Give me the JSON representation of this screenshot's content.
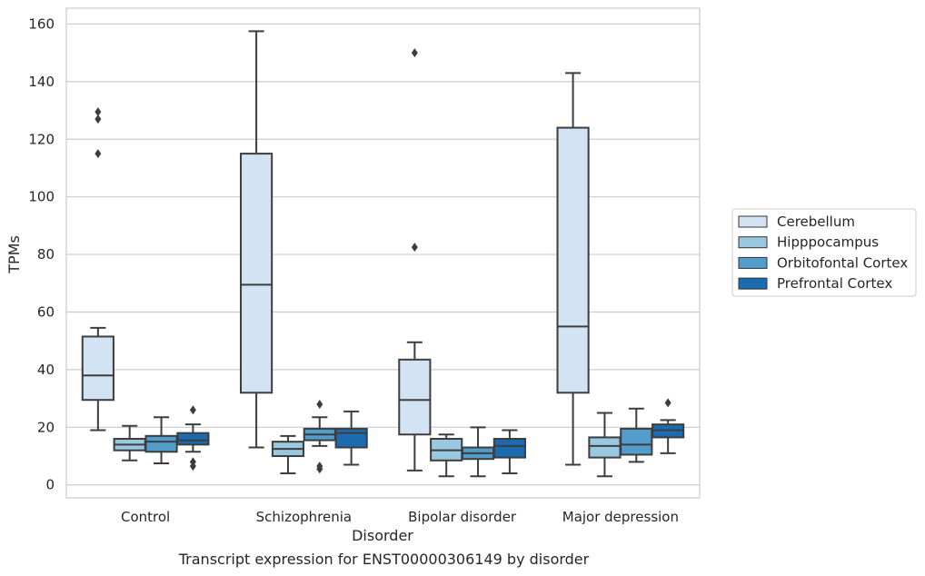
{
  "chart_data": {
    "type": "box",
    "xlabel": "Disorder",
    "ylabel": "TPMs",
    "caption": "Transcript expression for ENST00000306149 by disorder",
    "ylim": [
      -4.5,
      165.5
    ],
    "yticks": [
      0,
      20,
      40,
      60,
      80,
      100,
      120,
      140,
      160
    ],
    "grid": "horizontal",
    "legend_position": "right",
    "categories": [
      "Control",
      "Schizophrenia",
      "Bipolar disorder",
      "Major depression"
    ],
    "series": [
      {
        "name": "Cerebellum",
        "color": "#d2e3f3",
        "boxes": [
          {
            "whisker_low": 19,
            "q1": 29.5,
            "median": 38,
            "q3": 51.5,
            "whisker_high": 54.5,
            "outliers": [
              115,
              127,
              129.5
            ]
          },
          {
            "whisker_low": 13,
            "q1": 32,
            "median": 69.5,
            "q3": 115,
            "whisker_high": 157.5,
            "outliers": []
          },
          {
            "whisker_low": 5,
            "q1": 17.5,
            "median": 29.5,
            "q3": 43.5,
            "whisker_high": 49.5,
            "outliers": [
              82.5,
              150
            ]
          },
          {
            "whisker_low": 7,
            "q1": 32,
            "median": 55,
            "q3": 124,
            "whisker_high": 143,
            "outliers": []
          }
        ]
      },
      {
        "name": "Hipppocampus",
        "color": "#9ac8e0",
        "boxes": [
          {
            "whisker_low": 8.5,
            "q1": 12,
            "median": 14,
            "q3": 16,
            "whisker_high": 20.5,
            "outliers": []
          },
          {
            "whisker_low": 4,
            "q1": 10,
            "median": 12.5,
            "q3": 15,
            "whisker_high": 17,
            "outliers": []
          },
          {
            "whisker_low": 3,
            "q1": 8.5,
            "median": 12,
            "q3": 16,
            "whisker_high": 17.5,
            "outliers": []
          },
          {
            "whisker_low": 3,
            "q1": 9.5,
            "median": 13.5,
            "q3": 16.5,
            "whisker_high": 25,
            "outliers": []
          }
        ]
      },
      {
        "name": "Orbitofontal Cortex",
        "color": "#529dcc",
        "boxes": [
          {
            "whisker_low": 7.5,
            "q1": 11.5,
            "median": 15,
            "q3": 17,
            "whisker_high": 23.5,
            "outliers": []
          },
          {
            "whisker_low": 13.5,
            "q1": 15.5,
            "median": 17.5,
            "q3": 19.5,
            "whisker_high": 23.5,
            "outliers": [
              5.5,
              6.5,
              28
            ]
          },
          {
            "whisker_low": 3,
            "q1": 9,
            "median": 11,
            "q3": 13,
            "whisker_high": 20,
            "outliers": []
          },
          {
            "whisker_low": 8,
            "q1": 10.5,
            "median": 14,
            "q3": 19.5,
            "whisker_high": 26.5,
            "outliers": []
          }
        ]
      },
      {
        "name": "Prefrontal Cortex",
        "color": "#1c6aaf",
        "boxes": [
          {
            "whisker_low": 11.5,
            "q1": 14,
            "median": 15.5,
            "q3": 18,
            "whisker_high": 21,
            "outliers": [
              6.5,
              8,
              26
            ]
          },
          {
            "whisker_low": 7,
            "q1": 13,
            "median": 18,
            "q3": 19.5,
            "whisker_high": 25.5,
            "outliers": []
          },
          {
            "whisker_low": 4,
            "q1": 9.5,
            "median": 13.5,
            "q3": 16,
            "whisker_high": 19,
            "outliers": []
          },
          {
            "whisker_low": 11,
            "q1": 16.5,
            "median": 19,
            "q3": 21,
            "whisker_high": 22.5,
            "outliers": [
              28.5
            ]
          }
        ]
      }
    ]
  }
}
